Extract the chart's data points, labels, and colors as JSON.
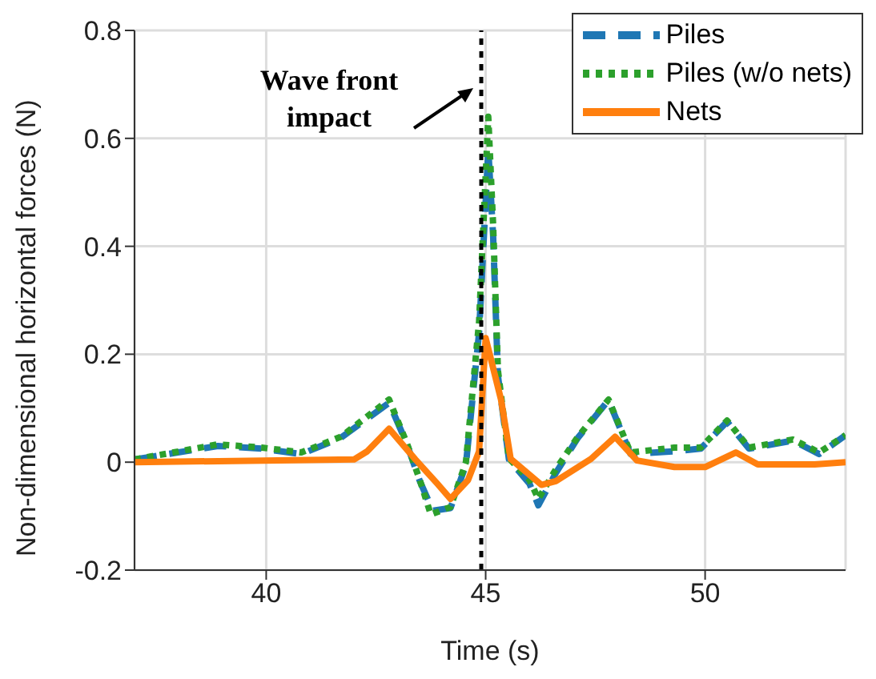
{
  "chart_data": {
    "type": "line",
    "xlabel": "Time (s)",
    "ylabel": "Non-dimensional horizontal forces (N)",
    "xlim": [
      37,
      53.2
    ],
    "ylim": [
      -0.2,
      0.8
    ],
    "xticks": [
      40,
      45,
      50
    ],
    "yticks": [
      -0.2,
      0,
      0.2,
      0.4,
      0.6,
      0.8
    ],
    "grid": true,
    "legend": "top right",
    "marker": "none",
    "series": [
      {
        "name": "Piles",
        "color": "#1f77b4",
        "line_style": "dashed",
        "x": [
          37,
          38.9,
          39.9,
          40.8,
          41.7,
          42.8,
          43.2,
          43.5,
          43.8,
          44.2,
          44.55,
          44.85,
          45.06,
          45.17,
          45.28,
          45.53,
          46.0,
          46.2,
          46.6,
          47.1,
          47.8,
          48.3,
          49.3,
          49.9,
          50.5,
          51.0,
          52.0,
          52.6,
          53.2
        ],
        "values": [
          0.005,
          0.03,
          0.025,
          0.015,
          0.045,
          0.11,
          0.035,
          -0.035,
          -0.09,
          -0.085,
          -0.005,
          0.24,
          0.58,
          0.42,
          0.16,
          0.005,
          -0.04,
          -0.08,
          -0.02,
          0.045,
          0.115,
          0.015,
          0.02,
          0.025,
          0.075,
          0.025,
          0.04,
          0.015,
          0.05
        ]
      },
      {
        "name": "Piles (w/o nets)",
        "color": "#2ca02c",
        "line_style": "dotted",
        "x": [
          37,
          38.9,
          39.9,
          40.8,
          41.7,
          42.8,
          43.2,
          43.5,
          43.75,
          44.2,
          44.55,
          44.85,
          45.06,
          45.17,
          45.28,
          45.53,
          46.0,
          46.2,
          46.6,
          47.1,
          47.8,
          48.3,
          49.3,
          49.9,
          50.5,
          51.0,
          52.0,
          52.6,
          53.2
        ],
        "values": [
          0.005,
          0.033,
          0.027,
          0.018,
          0.047,
          0.116,
          0.036,
          -0.033,
          -0.097,
          -0.083,
          0,
          0.26,
          0.64,
          0.44,
          0.17,
          0.007,
          -0.033,
          -0.068,
          -0.013,
          0.047,
          0.116,
          0.018,
          0.027,
          0.027,
          0.077,
          0.027,
          0.042,
          0.018,
          0.05
        ]
      },
      {
        "name": "Nets",
        "color": "#ff7f0e",
        "line_style": "solid",
        "x": [
          37,
          42,
          42.3,
          42.8,
          43.4,
          43.9,
          44.2,
          44.6,
          44.85,
          45.0,
          45.35,
          45.57,
          46.27,
          46.6,
          47.4,
          47.95,
          48.45,
          49.3,
          50.0,
          50.7,
          51.2,
          52.5,
          53.2
        ],
        "values": [
          0,
          0.005,
          0.02,
          0.062,
          0.005,
          -0.04,
          -0.068,
          -0.033,
          0.02,
          0.23,
          0.116,
          0.006,
          -0.042,
          -0.035,
          0.006,
          0.047,
          0.003,
          -0.009,
          -0.009,
          0.018,
          -0.004,
          -0.004,
          0
        ]
      }
    ],
    "ref_lines": [
      {
        "axis": "x",
        "value": 44.9,
        "label": "Wave front impact",
        "color": "#000000",
        "line_style": "dotted"
      }
    ]
  }
}
